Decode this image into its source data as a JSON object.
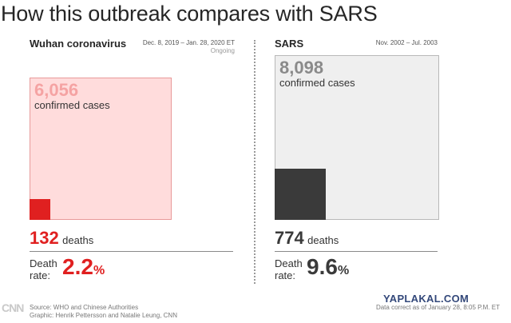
{
  "title": "How this outbreak compares with SARS",
  "colors": {
    "wuhan_accent": "#e02020",
    "wuhan_fill": "#ffdcdc",
    "wuhan_light_text": "#f5a3a3",
    "sars_accent": "#3a3a3a",
    "sars_fill": "#efefef",
    "sars_light_text": "#8a8a8a"
  },
  "chart_data": [
    {
      "type": "area-comparison",
      "name": "Wuhan coronavirus",
      "date_range": "Dec. 8, 2019 – Jan. 28, 2020 ET",
      "status": "Ongoing",
      "cases": 6056,
      "cases_display": "6,056",
      "cases_label": "confirmed cases",
      "deaths": 132,
      "deaths_display": "132",
      "deaths_label": "deaths",
      "death_rate_label": "Death rate:",
      "death_rate": "2.2",
      "death_rate_unit": "%"
    },
    {
      "type": "area-comparison",
      "name": "SARS",
      "date_range": "Nov. 2002 – Jul. 2003",
      "status": "",
      "cases": 8098,
      "cases_display": "8,098",
      "cases_label": "confirmed cases",
      "deaths": 774,
      "deaths_display": "774",
      "deaths_label": "deaths",
      "death_rate_label": "Death rate:",
      "death_rate": "9.6",
      "death_rate_unit": "%"
    }
  ],
  "footer": {
    "logo": "CNN",
    "source": "Source: WHO and Chinese Authorities",
    "graphic": "Graphic: Henrik Pettersson and Natalie Leung, CNN",
    "data_note": "Data correct as of January 28, 8:05 P.M. ET",
    "watermark": "YAPLAKAL.COM"
  }
}
